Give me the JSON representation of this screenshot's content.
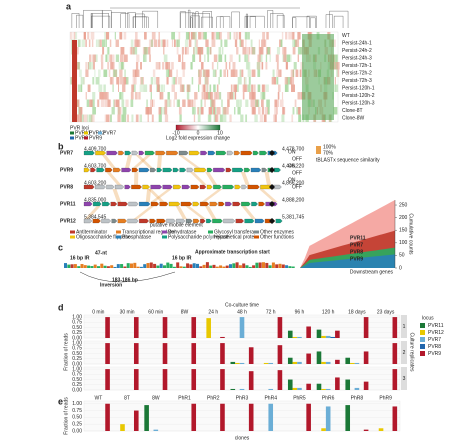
{
  "panels": [
    "a",
    "b",
    "c",
    "d",
    "e"
  ],
  "heatmap": {
    "rows": [
      "WT",
      "Persist-24h-1",
      "Persist-24h-2",
      "Persist-24h-3",
      "Persist-72h-1",
      "Persist-72h-2",
      "Persist-72h-3",
      "Persist-120h-1",
      "Persist-120h-2",
      "Persist-120h-3",
      "Clone-8T",
      "Clone-8W"
    ],
    "legend_title": "PVR loci",
    "legend": [
      "PVR11",
      "PVR12",
      "PVR7",
      "PVR8",
      "PVR9"
    ],
    "colorbar_title": "Log2 fold expression change",
    "colorbar_ticks": [
      "-10",
      "0",
      "10"
    ]
  },
  "alignment": {
    "loci": [
      "PVR7",
      "PVR9",
      "PVR8",
      "PVR11",
      "PVR12"
    ],
    "starts": [
      "4,409,700",
      "4,603,700",
      "4,603,200",
      "4,835,000",
      "5,384,545"
    ],
    "ends": [
      "4,478,700",
      "4,446,220",
      "4,866,200",
      "4,888,200",
      "5,381,745"
    ],
    "switch": [
      "ON",
      "OFF",
      "ON",
      "OFF",
      "ON",
      "OFF"
    ],
    "similarity_title": "tBLASTx sequence similarity",
    "similarity_ticks": [
      "100%",
      "70%"
    ],
    "gene_legend": [
      "Antiterminator",
      "Transcriptional regulator",
      "Dehydratase",
      "Glycosyl transferase",
      "Other enzymes",
      "Oligosaccharide flippase",
      "Phosphatase",
      "Polysaccharide polymerase",
      "Hypothetical protein",
      "Other functions"
    ],
    "note": "putative mobile element"
  },
  "motif": {
    "labels": [
      "16 bp IR",
      "47-nt",
      "16 bp IR",
      "Approximate transcription start",
      "183-186 bp",
      "Inversion"
    ],
    "ylabel": "Cumulative counts",
    "yticks": [
      0,
      50,
      100,
      150,
      200,
      250
    ],
    "ylim": [
      0,
      270
    ],
    "xlabel": "Downstream genes",
    "areas": [
      "PVR11",
      "PVR7",
      "PVR8",
      "PVR9"
    ]
  },
  "timecourse": {
    "title": "Co-culture time",
    "times": [
      "0 min",
      "30 min",
      "60 min",
      "8W",
      "24 h",
      "48 h",
      "72 h",
      "96 h",
      "120 h",
      "18 days",
      "23 days"
    ],
    "ylabel": "Fraction of reads",
    "strip": "Culture replicates",
    "replicates": [
      "1",
      "2",
      "3"
    ],
    "legend_title": "locus",
    "ylim": [
      0,
      1.1
    ],
    "yticks": [
      {
        "value": 0,
        "label": "0.00"
      },
      0.25,
      {
        "value": 0.5,
        "label": "0.50"
      },
      0.75,
      {
        "value": 1,
        "label": "1.00"
      }
    ],
    "series": [
      {
        "name": "PVR11",
        "color": "#1b7837",
        "values": [
          [
            0,
            0,
            0,
            0,
            0,
            0,
            0,
            0.35,
            0.4,
            0,
            0
          ],
          [
            0,
            0,
            0,
            0,
            0,
            0.1,
            0,
            0.3,
            0.6,
            0.3,
            0
          ],
          [
            0,
            0,
            0,
            0,
            0,
            0.05,
            0,
            0.5,
            0.3,
            0.5,
            0
          ]
        ]
      },
      {
        "name": "PVR12",
        "color": "#e8c800",
        "values": [
          [
            0,
            0,
            0,
            0,
            0.95,
            0,
            0,
            0.05,
            0.1,
            0,
            0
          ],
          [
            0,
            0,
            0,
            0,
            0,
            0.05,
            0.05,
            0.1,
            0.1,
            0.05,
            0
          ],
          [
            0,
            0,
            0,
            0,
            0,
            0,
            0,
            0.1,
            0.05,
            0,
            0
          ]
        ]
      },
      {
        "name": "PVR7",
        "color": "#6baed6",
        "values": [
          [
            0,
            0,
            0,
            0,
            0,
            1,
            0,
            0.05,
            0.1,
            0,
            0
          ],
          [
            0,
            0,
            0,
            0,
            0,
            0.05,
            0.05,
            0.1,
            0.1,
            0.05,
            0
          ],
          [
            0,
            0,
            0,
            0,
            0,
            0.05,
            0.05,
            0.1,
            0.05,
            0.1,
            0
          ]
        ]
      },
      {
        "name": "PVR8",
        "color": "#2166ac",
        "values": [
          [
            0,
            0,
            0,
            0,
            0,
            0,
            0,
            0,
            0.05,
            0,
            0
          ],
          [
            0,
            0,
            0,
            0,
            0,
            0,
            0,
            0,
            0,
            0,
            0
          ],
          [
            0,
            0,
            0,
            0,
            0,
            0,
            0,
            0,
            0,
            0,
            0
          ]
        ]
      },
      {
        "name": "PVR9",
        "color": "#b2182b",
        "values": [
          [
            1,
            1,
            1,
            1,
            0.05,
            0,
            1,
            0.55,
            0.35,
            1,
            1
          ],
          [
            1,
            1,
            1,
            1,
            1,
            0.8,
            0.9,
            0.5,
            0.2,
            0.6,
            1
          ],
          [
            1,
            1,
            1,
            1,
            1,
            0.9,
            0.95,
            0.3,
            0.6,
            0.4,
            1
          ]
        ]
      }
    ]
  },
  "clones": {
    "categories": [
      "WT",
      "8T",
      "8W",
      "PhR1",
      "PhR2",
      "PhR3",
      "PhR4",
      "PhR5",
      "PhR6",
      "PhR8",
      "PhR9"
    ],
    "xlabel": "clones",
    "ylabel": "Fraction of reads",
    "ylim": [
      0,
      1.1
    ],
    "yticks": [
      {
        "value": 0,
        "label": "0.00"
      },
      0.25,
      {
        "value": 0.5,
        "label": "0.50"
      },
      0.75,
      {
        "value": 1,
        "label": "1.00"
      }
    ],
    "series": [
      {
        "name": "PVR11",
        "color": "#1b7837",
        "values": [
          0,
          0,
          0.95,
          0,
          0,
          0,
          0,
          0,
          0,
          0.95,
          0
        ]
      },
      {
        "name": "PVR12",
        "color": "#e8c800",
        "values": [
          0,
          0.25,
          0,
          0,
          0,
          0,
          0,
          0,
          0.1,
          0,
          0.1
        ]
      },
      {
        "name": "PVR7",
        "color": "#6baed6",
        "values": [
          0,
          0,
          0.05,
          0,
          0,
          0,
          1,
          0,
          0.9,
          0,
          0
        ]
      },
      {
        "name": "PVR8",
        "color": "#2166ac",
        "values": [
          0,
          0,
          0,
          0,
          0,
          0,
          0,
          0,
          0,
          0,
          0
        ]
      },
      {
        "name": "PVR9",
        "color": "#b2182b",
        "values": [
          1,
          0.75,
          0,
          1,
          1,
          1,
          0,
          1,
          0,
          0.05,
          0.9
        ]
      }
    ]
  }
}
